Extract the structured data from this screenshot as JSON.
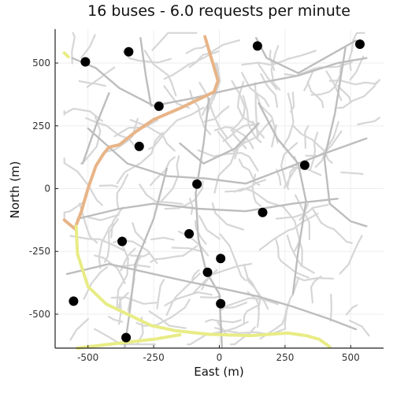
{
  "chart_data": {
    "type": "scatter",
    "title": "16 buses - 6.0 requests per minute",
    "xlabel": "East (m)",
    "ylabel": "North (m)",
    "xlim": [
      -625,
      625
    ],
    "ylim": [
      -635,
      635
    ],
    "xticks": [
      -500,
      -250,
      0,
      250,
      500
    ],
    "yticks": [
      -500,
      -250,
      0,
      250,
      500
    ],
    "grid": true,
    "legend": "none",
    "colors": {
      "background_roads": "#d6d6d6",
      "main_roads": "#bdbdbd",
      "route_orange": "#e8b487",
      "route_yellow": "#e8ec85",
      "buses": "#000000",
      "axes": "#222222",
      "grid": "#eeeeee"
    },
    "series": [
      {
        "name": "buses",
        "points": [
          [
            -510,
            505
          ],
          [
            -345,
            545
          ],
          [
            145,
            568
          ],
          [
            535,
            575
          ],
          [
            -230,
            328
          ],
          [
            -305,
            168
          ],
          [
            -85,
            18
          ],
          [
            325,
            93
          ],
          [
            165,
            -95
          ],
          [
            -115,
            -180
          ],
          [
            -370,
            -210
          ],
          [
            5,
            -278
          ],
          [
            -45,
            -333
          ],
          [
            -555,
            -448
          ],
          [
            5,
            -458
          ],
          [
            -355,
            -593
          ]
        ]
      }
    ],
    "routes": [
      {
        "color_key": "route_orange",
        "points": [
          [
            -590,
            -125
          ],
          [
            -550,
            -160
          ],
          [
            -525,
            -90
          ],
          [
            -500,
            0
          ],
          [
            -470,
            90
          ],
          [
            -440,
            140
          ],
          [
            -420,
            165
          ],
          [
            -380,
            175
          ],
          [
            -320,
            225
          ],
          [
            -250,
            275
          ],
          [
            -150,
            320
          ],
          [
            -20,
            385
          ],
          [
            -5,
            430
          ],
          [
            -55,
            605
          ]
        ]
      },
      {
        "color_key": "route_yellow",
        "points": [
          [
            -545,
            -150
          ],
          [
            -540,
            -260
          ],
          [
            -500,
            -390
          ],
          [
            -430,
            -460
          ],
          [
            -330,
            -510
          ],
          [
            -260,
            -545
          ],
          [
            -170,
            -565
          ],
          [
            -40,
            -580
          ],
          [
            120,
            -585
          ],
          [
            260,
            -575
          ],
          [
            330,
            -585
          ],
          [
            380,
            -600
          ],
          [
            420,
            -630
          ]
        ]
      },
      {
        "color_key": "route_yellow",
        "points": [
          [
            -540,
            -635
          ],
          [
            -380,
            -615
          ],
          [
            -250,
            -600
          ],
          [
            -150,
            -582
          ]
        ]
      },
      {
        "color_key": "route_yellow",
        "points": [
          [
            -590,
            540
          ],
          [
            -575,
            525
          ]
        ]
      }
    ]
  }
}
